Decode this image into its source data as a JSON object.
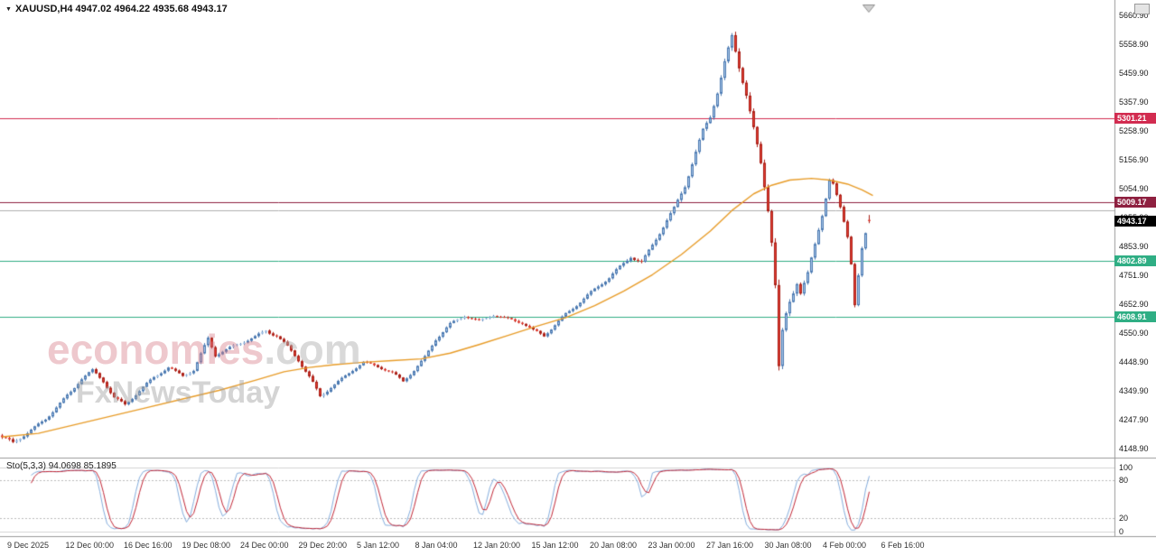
{
  "window": {
    "symbol_line": "XAUUSD,H4 4947.02 4964.22 4935.68 4943.17"
  },
  "watermark": {
    "brand": "economies",
    "brand_suffix": ".com",
    "subtitle": "FxNewsToday"
  },
  "chart_data": {
    "type": "candlestick",
    "symbol": "XAUUSD",
    "timeframe": "H4",
    "last_ohlc": {
      "open": 4947.02,
      "high": 4964.22,
      "low": 4935.68,
      "close": 4943.17
    },
    "ylim": [
      4148.9,
      5660.9
    ],
    "y_axis": {
      "labels": [
        "5660.90",
        "5558.90",
        "5459.90",
        "5357.90",
        "5258.90",
        "5156.90",
        "5054.90",
        "4955.90",
        "4853.90",
        "4751.90",
        "4652.90",
        "4550.90",
        "4448.90",
        "4349.90",
        "4247.90",
        "4148.90"
      ],
      "top_value": 5660.9,
      "bottom_value": 4148.9
    },
    "x_axis": {
      "labels": [
        "9 Dec 2025",
        "12 Dec 00:00",
        "16 Dec 16:00",
        "19 Dec 08:00",
        "24 Dec 00:00",
        "29 Dec 20:00",
        "5 Jan 12:00",
        "8 Jan 04:00",
        "12 Jan 20:00",
        "15 Jan 12:00",
        "20 Jan 08:00",
        "23 Jan 00:00",
        "27 Jan 16:00",
        "30 Jan 08:00",
        "4 Feb 00:00",
        "6 Feb 16:00"
      ]
    },
    "hlines": [
      {
        "value": 5301.21,
        "label": "5301.21",
        "color": "#d22c50"
      },
      {
        "value": 5009.17,
        "label": "5009.17",
        "color": "#8e2040"
      },
      {
        "value": 4980.4,
        "label": "",
        "color": "#b0b0b0"
      },
      {
        "value": 4802.89,
        "label": "4802.89",
        "color": "#2fae84"
      },
      {
        "value": 4608.91,
        "label": "4608.91",
        "color": "#2fae84"
      }
    ],
    "current_price": {
      "label": "4943.17",
      "value": 4943.17,
      "bg": "#000000"
    },
    "candle_count": 241,
    "price_path": [
      [
        0,
        4185,
        12
      ],
      [
        3,
        4165,
        13
      ],
      [
        6,
        4195,
        11
      ],
      [
        9,
        4225,
        10
      ],
      [
        12,
        4255,
        10
      ],
      [
        15,
        4295,
        10
      ],
      [
        19,
        4345,
        10
      ],
      [
        22,
        4390,
        10
      ],
      [
        25,
        4420,
        9
      ],
      [
        28,
        4385,
        10
      ],
      [
        31,
        4330,
        11
      ],
      [
        34,
        4305,
        11
      ],
      [
        38,
        4350,
        9
      ],
      [
        42,
        4395,
        9
      ],
      [
        46,
        4430,
        9
      ],
      [
        50,
        4405,
        8
      ],
      [
        53,
        4425,
        9
      ],
      [
        55,
        4480,
        13
      ],
      [
        57,
        4535,
        15
      ],
      [
        59,
        4475,
        12
      ],
      [
        62,
        4490,
        10
      ],
      [
        66,
        4515,
        10
      ],
      [
        70,
        4540,
        10
      ],
      [
        73,
        4565,
        12
      ],
      [
        76,
        4545,
        10
      ],
      [
        79,
        4505,
        10
      ],
      [
        82,
        4455,
        10
      ],
      [
        85,
        4395,
        12
      ],
      [
        88,
        4330,
        14
      ],
      [
        91,
        4365,
        10
      ],
      [
        94,
        4395,
        9
      ],
      [
        97,
        4425,
        9
      ],
      [
        100,
        4450,
        8
      ],
      [
        104,
        4432,
        8
      ],
      [
        108,
        4412,
        8
      ],
      [
        111,
        4385,
        9
      ],
      [
        114,
        4425,
        9
      ],
      [
        117,
        4470,
        10
      ],
      [
        120,
        4530,
        11
      ],
      [
        124,
        4580,
        10
      ],
      [
        128,
        4610,
        9
      ],
      [
        132,
        4595,
        8
      ],
      [
        136,
        4618,
        8
      ],
      [
        140,
        4602,
        8
      ],
      [
        144,
        4585,
        9
      ],
      [
        147,
        4558,
        10
      ],
      [
        150,
        4542,
        10
      ],
      [
        153,
        4582,
        10
      ],
      [
        156,
        4622,
        10
      ],
      [
        160,
        4662,
        10
      ],
      [
        164,
        4702,
        11
      ],
      [
        168,
        4742,
        11
      ],
      [
        171,
        4782,
        12
      ],
      [
        174,
        4822,
        12
      ],
      [
        177,
        4802,
        12
      ],
      [
        180,
        4862,
        12
      ],
      [
        183,
        4922,
        13
      ],
      [
        186,
        4982,
        14
      ],
      [
        189,
        5062,
        15
      ],
      [
        192,
        5182,
        16
      ],
      [
        194,
        5262,
        15
      ],
      [
        196,
        5312,
        15
      ],
      [
        198,
        5400,
        18
      ],
      [
        200,
        5500,
        20
      ],
      [
        202,
        5585,
        24
      ],
      [
        204,
        5480,
        26
      ],
      [
        206,
        5380,
        24
      ],
      [
        208,
        5255,
        24
      ],
      [
        210,
        5135,
        22
      ],
      [
        212,
        4985,
        26
      ],
      [
        213,
        4880,
        28
      ],
      [
        214,
        4730,
        34
      ],
      [
        215,
        4440,
        40
      ],
      [
        216,
        4560,
        26
      ],
      [
        217,
        4620,
        22
      ],
      [
        218,
        4665,
        20
      ],
      [
        220,
        4735,
        18
      ],
      [
        221,
        4700,
        18
      ],
      [
        223,
        4760,
        16
      ],
      [
        225,
        4855,
        15
      ],
      [
        227,
        4960,
        14
      ],
      [
        229,
        5085,
        13
      ],
      [
        230,
        5070,
        12
      ],
      [
        232,
        4985,
        13
      ],
      [
        234,
        4890,
        13
      ],
      [
        235,
        4800,
        14
      ],
      [
        236,
        4660,
        16
      ],
      [
        237,
        4760,
        14
      ],
      [
        238,
        4850,
        13
      ],
      [
        239,
        4900,
        12
      ],
      [
        240,
        4943,
        10
      ]
    ],
    "ma_path": [
      [
        0,
        4190
      ],
      [
        10,
        4202
      ],
      [
        20,
        4232
      ],
      [
        30,
        4262
      ],
      [
        40,
        4292
      ],
      [
        50,
        4322
      ],
      [
        60,
        4352
      ],
      [
        70,
        4387
      ],
      [
        78,
        4417
      ],
      [
        85,
        4432
      ],
      [
        92,
        4442
      ],
      [
        100,
        4450
      ],
      [
        108,
        4456
      ],
      [
        116,
        4462
      ],
      [
        124,
        4482
      ],
      [
        132,
        4512
      ],
      [
        140,
        4544
      ],
      [
        148,
        4576
      ],
      [
        156,
        4606
      ],
      [
        164,
        4648
      ],
      [
        172,
        4698
      ],
      [
        180,
        4756
      ],
      [
        188,
        4826
      ],
      [
        196,
        4908
      ],
      [
        202,
        4980
      ],
      [
        208,
        5038
      ],
      [
        213,
        5068
      ],
      [
        218,
        5086
      ],
      [
        224,
        5092
      ],
      [
        229,
        5086
      ],
      [
        234,
        5072
      ],
      [
        238,
        5052
      ],
      [
        241,
        5032
      ]
    ],
    "colors": {
      "up_fill": "#a9c7e9",
      "up_stroke": "#4a78b0",
      "down_fill": "#e63c30",
      "down_stroke": "#a82018",
      "ma": "#e89c28",
      "sto_k": "#85aede",
      "sto_d": "#c22838",
      "axis_line": "#9a9a9a",
      "sto_grid": "#bbbbbb"
    },
    "stochastic": {
      "label": "Sto(5,3,3) 94.0698 85.1895",
      "k_value": 94.0698,
      "d_value": 85.1895,
      "levels": [
        "100",
        "80",
        "20",
        "0"
      ]
    }
  }
}
